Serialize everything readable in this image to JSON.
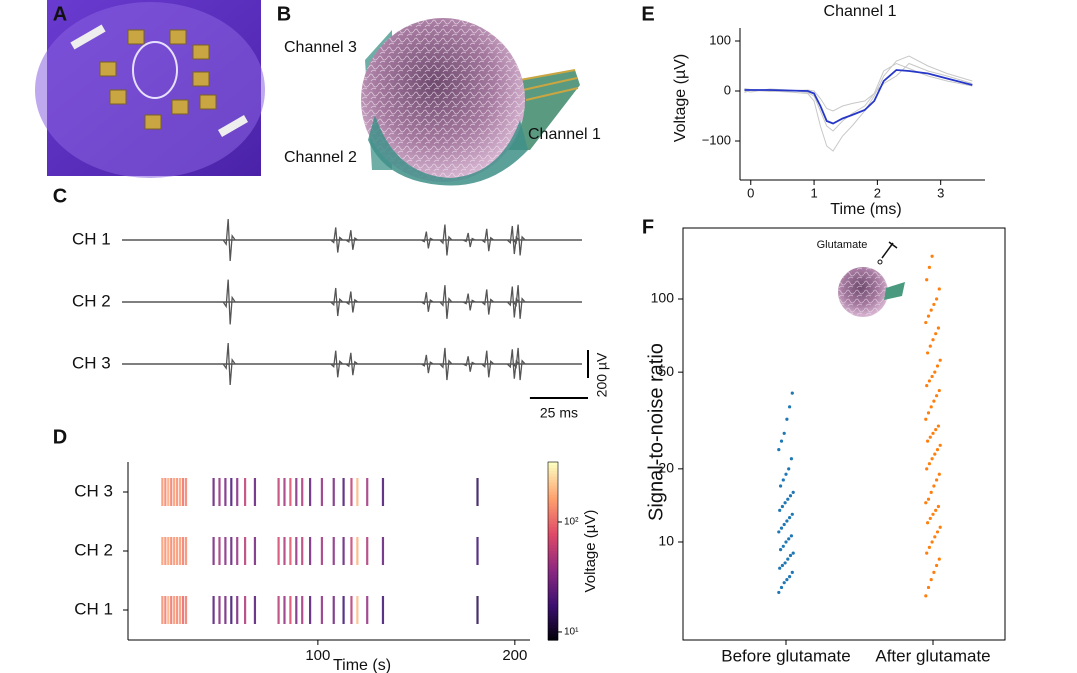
{
  "panel_labels": [
    "A",
    "B",
    "C",
    "D",
    "E",
    "F"
  ],
  "diagram": {
    "labels": [
      "Channel 3",
      "Channel 2",
      "Channel 1"
    ]
  },
  "chart_data": [
    {
      "type": "trace",
      "x": [
        45.7,
        92,
        98.5,
        131,
        139,
        149,
        157,
        168,
        170.5
      ],
      "xlim": [
        0,
        198
      ],
      "series": [
        {
          "name": "CH 1",
          "color": "#333333",
          "values": [
            150,
            90,
            70,
            60,
            110,
            50,
            80,
            100,
            110
          ]
        },
        {
          "name": "CH 2",
          "color": "#333333",
          "values": [
            160,
            100,
            75,
            70,
            120,
            60,
            90,
            110,
            120
          ]
        },
        {
          "name": "CH 3",
          "color": "#333333",
          "values": [
            150,
            95,
            80,
            65,
            115,
            55,
            95,
            105,
            115
          ]
        }
      ],
      "scale_bars": {
        "x": {
          "value": 25,
          "label": "25 ms"
        },
        "y": {
          "value": 200,
          "label": "200 µV"
        }
      }
    },
    {
      "type": "raster",
      "x": [
        21,
        22.5,
        24,
        25.5,
        27,
        28.5,
        30,
        31.5,
        33,
        47,
        50,
        53,
        56,
        59,
        63,
        68,
        80,
        83,
        86,
        89,
        92,
        96,
        102,
        108,
        113,
        117,
        120,
        125,
        133,
        181
      ],
      "xlim": [
        3.6,
        207.7
      ],
      "xticks": [
        100,
        200
      ],
      "xlabel": "Time (s)",
      "series": [
        {
          "name": "CH 3",
          "values": [
            150,
            130,
            180,
            120,
            160,
            140,
            170,
            110,
            130,
            25,
            40,
            30,
            20,
            35,
            60,
            25,
            60,
            45,
            80,
            35,
            50,
            25,
            40,
            30,
            20,
            60,
            200,
            45,
            20,
            15
          ]
        },
        {
          "name": "CH 2",
          "values": [
            160,
            140,
            170,
            130,
            150,
            150,
            160,
            120,
            140,
            30,
            45,
            35,
            25,
            40,
            55,
            30,
            70,
            50,
            85,
            40,
            55,
            30,
            45,
            35,
            25,
            65,
            190,
            50,
            25,
            18
          ]
        },
        {
          "name": "CH 1",
          "values": [
            140,
            120,
            190,
            110,
            150,
            130,
            160,
            100,
            120,
            22,
            35,
            28,
            18,
            30,
            50,
            22,
            55,
            40,
            75,
            30,
            45,
            22,
            38,
            28,
            18,
            55,
            210,
            40,
            18,
            14
          ]
        }
      ],
      "colorbar": {
        "label": "Voltage (µV)",
        "lim": [
          8.45,
          351
        ],
        "log": true,
        "ticks": [
          {
            "value": 10,
            "label": "10¹"
          },
          {
            "value": 100,
            "label": "10²"
          }
        ]
      }
    },
    {
      "type": "line",
      "title": "Channel 1",
      "xlabel": "Time (ms)",
      "ylabel": "Voltage (µV)",
      "x": [
        -0.1,
        0,
        0.3,
        0.6,
        0.9,
        1.0,
        1.1,
        1.2,
        1.3,
        1.45,
        1.6,
        1.8,
        1.95,
        2.1,
        2.3,
        2.5,
        2.8,
        3.1,
        3.5
      ],
      "xlim": [
        -0.17,
        3.7
      ],
      "ylim": [
        -178,
        126
      ],
      "xticks": [
        0,
        1,
        2,
        3
      ],
      "yticks": [
        100,
        0,
        {
          "value": -100,
          "label": "−100"
        }
      ],
      "series": [
        {
          "color": "#c8c8c8",
          "values": [
            5,
            3,
            0,
            -2,
            -5,
            -20,
            -70,
            -110,
            -120,
            -90,
            -70,
            -40,
            -10,
            30,
            60,
            70,
            50,
            35,
            20
          ]
        },
        {
          "color": "#c8c8c8",
          "values": [
            0,
            -2,
            4,
            2,
            -3,
            -10,
            -40,
            -70,
            -80,
            -60,
            -45,
            -30,
            -5,
            40,
            55,
            45,
            30,
            20,
            10
          ]
        },
        {
          "color": "#c8c8c8",
          "values": [
            -3,
            2,
            -1,
            0,
            2,
            0,
            -15,
            -35,
            -40,
            -30,
            -25,
            -20,
            -5,
            15,
            30,
            55,
            40,
            30,
            15
          ]
        },
        {
          "color": "#2536c8",
          "values": [
            2,
            2,
            2,
            1,
            0,
            -5,
            -30,
            -60,
            -65,
            -55,
            -48,
            -38,
            -20,
            20,
            42,
            40,
            35,
            25,
            12
          ]
        }
      ]
    },
    {
      "type": "strip",
      "ylabel": "Signal-to-noise ratio",
      "annotation": "Glutamate",
      "categories": [
        "Before glutamate",
        "After glutamate"
      ],
      "log": true,
      "ylim": [
        3.95,
        196
      ],
      "yticks": [
        10,
        20,
        50,
        100
      ],
      "series": [
        {
          "color": "#1f77b4",
          "values": [
            6.2,
            6.5,
            6.8,
            7,
            7.2,
            7.5,
            7.8,
            8,
            8.2,
            8.5,
            8.8,
            9,
            9.3,
            9.6,
            10,
            10.3,
            10.6,
            11,
            11.4,
            11.8,
            12.2,
            12.6,
            13,
            13.5,
            14,
            14.5,
            15,
            15.5,
            16,
            17,
            18,
            19,
            20,
            22,
            24,
            26,
            28,
            32,
            36,
            41
          ]
        },
        {
          "color": "#ff7f0e",
          "values": [
            6,
            6.5,
            7,
            7.5,
            8,
            8.5,
            9,
            9.5,
            10,
            10.5,
            11,
            11.5,
            12,
            12.5,
            13,
            13.5,
            14,
            14.5,
            15,
            16,
            17,
            18,
            19,
            20,
            21,
            22,
            23,
            24,
            25,
            26,
            27,
            28,
            29,
            30,
            32,
            34,
            36,
            38,
            40,
            42,
            44,
            46,
            48,
            50,
            53,
            56,
            60,
            64,
            68,
            72,
            76,
            80,
            85,
            90,
            95,
            100,
            110,
            120,
            135,
            150
          ]
        }
      ]
    }
  ]
}
